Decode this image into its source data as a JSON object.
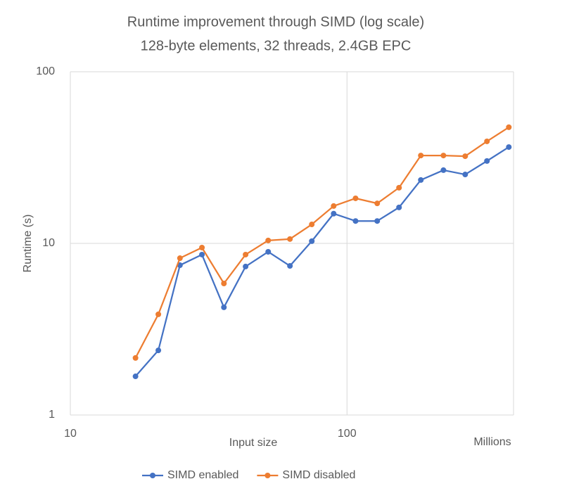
{
  "chart_data": {
    "type": "line",
    "title": "Runtime improvement through SIMD (log scale)",
    "subtitle": "128-byte elements, 32 threads, 2.4GB EPC",
    "x_label": "Input size",
    "x_unit_label": "Millions",
    "y_label": "Runtime (s)",
    "x": [
      17.2,
      20.8,
      24.9,
      29.9,
      35.9,
      43.0,
      51.9,
      62.2,
      74.6,
      89.5,
      107.4,
      128.6,
      154.2,
      184.9,
      223.2,
      267.5,
      320.6,
      384.6
    ],
    "series": [
      {
        "name": "SIMD enabled",
        "color": "#4472c4",
        "values": [
          1.68,
          2.38,
          7.46,
          8.6,
          4.24,
          7.33,
          8.93,
          7.39,
          10.3,
          14.9,
          13.5,
          13.5,
          16.2,
          23.4,
          26.7,
          25.2,
          30.2,
          36.4
        ]
      },
      {
        "name": "SIMD disabled",
        "color": "#ed7d31",
        "values": [
          2.15,
          3.86,
          8.2,
          9.45,
          5.84,
          8.6,
          10.4,
          10.6,
          12.9,
          16.5,
          18.3,
          17.1,
          21.1,
          32.5,
          32.5,
          32.2,
          39.3,
          47.5
        ]
      }
    ],
    "xlim": [
      10,
      400
    ],
    "xticks": [
      10,
      100
    ],
    "x_log": true,
    "ylim": [
      1,
      100
    ],
    "yticks": [
      1,
      10,
      100
    ],
    "y_log": true,
    "grid": true,
    "legend": "bottom"
  }
}
